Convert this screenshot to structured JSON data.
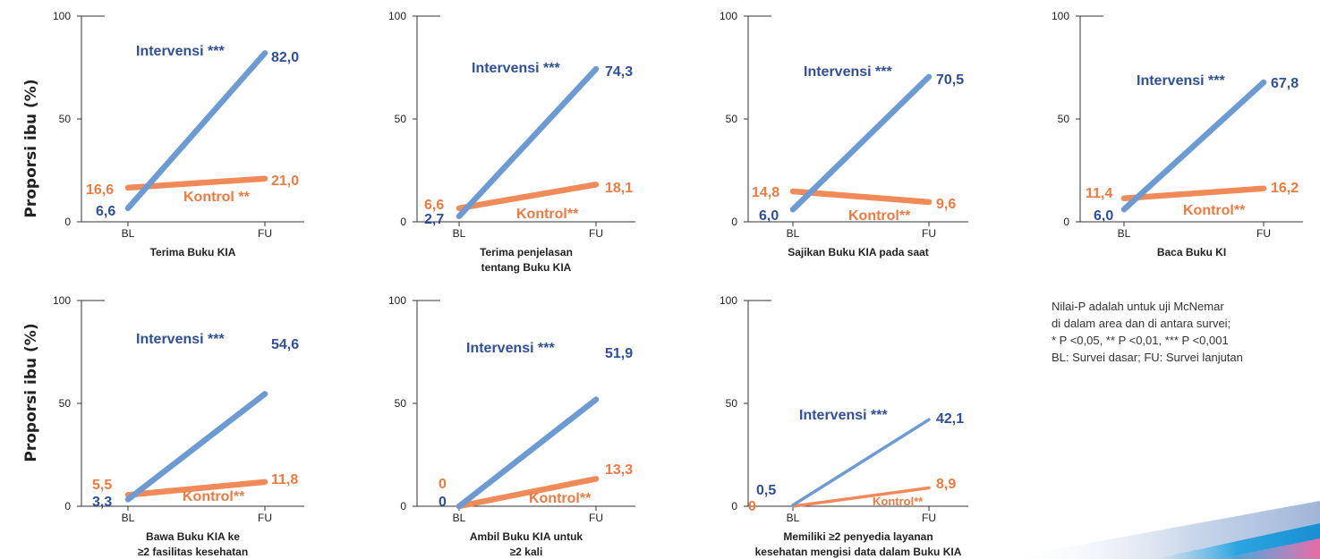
{
  "y_axis_label": "Proporsi ibu (%)",
  "colors": {
    "intervensi": "#6b9bd2",
    "intervensi_text": "#2f4f9a",
    "kontrol": "#f08a58",
    "kontrol_text": "#ee7a40",
    "axis": "#333333"
  },
  "note": {
    "lines": [
      "Nilai-P adalah untuk uji McNemar",
      "di dalam area dan di antara survei;",
      "* P <0,05, ** P <0,01, *** P <0,001",
      "BL: Survei dasar; FU: Survei lanjutan"
    ]
  },
  "chart_data": [
    {
      "type": "line",
      "title": [
        "Terima Buku KIA"
      ],
      "categories": [
        "BL",
        "FU"
      ],
      "ylim": [
        0,
        100
      ],
      "yticks": [
        0,
        50,
        100
      ],
      "series": [
        {
          "name": "Intervensi  ***",
          "values": [
            6.6,
            82.0
          ],
          "labels": [
            "6,6",
            "82,0"
          ]
        },
        {
          "name": "Kontrol **",
          "values": [
            16.6,
            21.0
          ],
          "labels": [
            "16,6",
            "21,0"
          ]
        }
      ]
    },
    {
      "type": "line",
      "title": [
        "Terima penjelasan",
        "tentang Buku KIA"
      ],
      "categories": [
        "BL",
        "FU"
      ],
      "ylim": [
        0,
        100
      ],
      "yticks": [
        0,
        50,
        100
      ],
      "series": [
        {
          "name": "Intervensi ***",
          "values": [
            2.7,
            74.3
          ],
          "labels": [
            "2,7",
            "74,3"
          ]
        },
        {
          "name": "Kontrol**",
          "values": [
            6.6,
            18.1
          ],
          "labels": [
            "6,6",
            "18,1"
          ]
        }
      ]
    },
    {
      "type": "line",
      "title": [
        "Sajikan Buku KIA pada saat"
      ],
      "categories": [
        "BL",
        "FU"
      ],
      "ylim": [
        0,
        100
      ],
      "yticks": [
        0,
        50,
        100
      ],
      "series": [
        {
          "name": "Intervensi ***",
          "values": [
            6.0,
            70.5
          ],
          "labels": [
            "6,0",
            "70,5"
          ]
        },
        {
          "name": "Kontrol**",
          "values": [
            14.8,
            9.6
          ],
          "labels": [
            "14,8",
            "9,6"
          ]
        }
      ]
    },
    {
      "type": "line",
      "title": [
        "Baca Buku KI"
      ],
      "categories": [
        "BL",
        "FU"
      ],
      "ylim": [
        0,
        100
      ],
      "yticks": [
        0,
        50,
        100
      ],
      "series": [
        {
          "name": "Intervensi ***",
          "values": [
            6.0,
            67.8
          ],
          "labels": [
            "6,0",
            "67,8"
          ]
        },
        {
          "name": "Kontrol**",
          "values": [
            11.4,
            16.2
          ],
          "labels": [
            "11,4",
            "16,2"
          ]
        }
      ]
    },
    {
      "type": "line",
      "title": [
        "Bawa Buku KIA ke",
        "≥2 fasilitas kesehatan"
      ],
      "categories": [
        "BL",
        "FU"
      ],
      "ylim": [
        0,
        100
      ],
      "yticks": [
        0,
        50,
        100
      ],
      "series": [
        {
          "name": "Intervensi ***",
          "values": [
            3.3,
            54.6
          ],
          "labels": [
            "3,3",
            "54,6"
          ]
        },
        {
          "name": "Kontrol**",
          "values": [
            5.5,
            11.8
          ],
          "labels": [
            "5,5",
            "11,8"
          ]
        }
      ]
    },
    {
      "type": "line",
      "title": [
        "Ambil Buku KIA untuk",
        "≥2 kali"
      ],
      "categories": [
        "BL",
        "FU"
      ],
      "ylim": [
        0,
        100
      ],
      "yticks": [
        0,
        50,
        100
      ],
      "series": [
        {
          "name": "Intervensi ***",
          "values": [
            0,
            51.9
          ],
          "labels": [
            "0",
            "51,9"
          ]
        },
        {
          "name": "Kontrol**",
          "values": [
            0,
            13.3
          ],
          "labels": [
            "0",
            "13,3"
          ]
        }
      ]
    },
    {
      "type": "line",
      "title": [
        "Memiliki ≥2 penyedia layanan",
        "kesehatan mengisi data dalam Buku KIA"
      ],
      "categories": [
        "BL",
        "FU"
      ],
      "ylim": [
        0,
        100
      ],
      "yticks": [
        0,
        50,
        100
      ],
      "series": [
        {
          "name": "Intervensi ***",
          "values": [
            0.5,
            42.1
          ],
          "labels": [
            "0,5",
            "42,1"
          ]
        },
        {
          "name": "Kontrol**",
          "values": [
            0,
            8.9
          ],
          "labels": [
            "0",
            "8,9"
          ]
        }
      ]
    }
  ]
}
